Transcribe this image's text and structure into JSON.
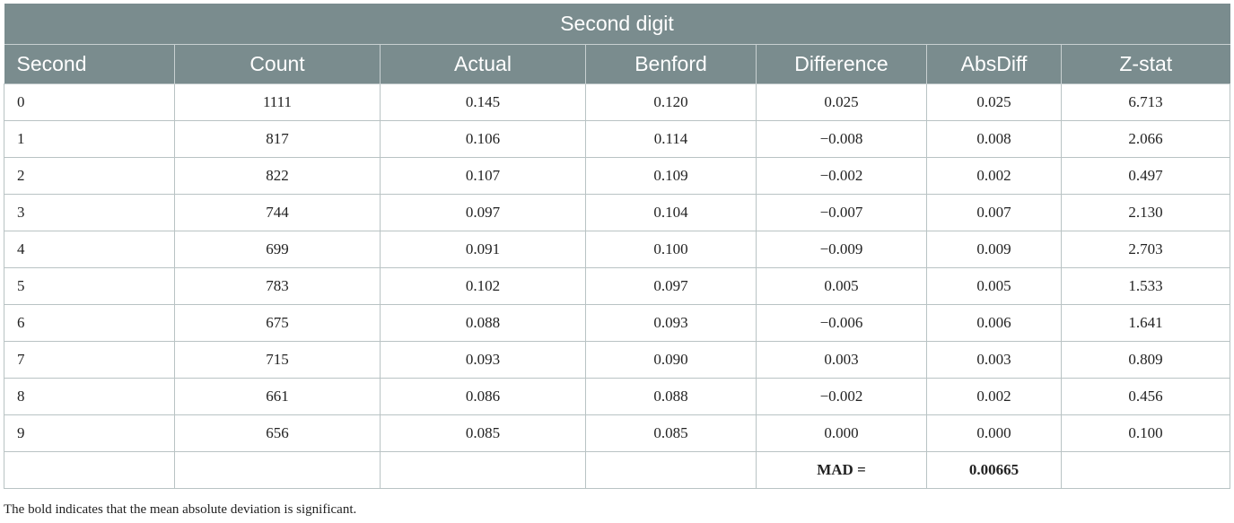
{
  "table": {
    "title": "Second digit",
    "columns": [
      "Second",
      "Count",
      "Actual",
      "Benford",
      "Difference",
      "AbsDiff",
      "Z-stat"
    ],
    "rows": [
      [
        "0",
        "1111",
        "0.145",
        "0.120",
        "0.025",
        "0.025",
        "6.713"
      ],
      [
        "1",
        "817",
        "0.106",
        "0.114",
        "−0.008",
        "0.008",
        "2.066"
      ],
      [
        "2",
        "822",
        "0.107",
        "0.109",
        "−0.002",
        "0.002",
        "0.497"
      ],
      [
        "3",
        "744",
        "0.097",
        "0.104",
        "−0.007",
        "0.007",
        "2.130"
      ],
      [
        "4",
        "699",
        "0.091",
        "0.100",
        "−0.009",
        "0.009",
        "2.703"
      ],
      [
        "5",
        "783",
        "0.102",
        "0.097",
        "0.005",
        "0.005",
        "1.533"
      ],
      [
        "6",
        "675",
        "0.088",
        "0.093",
        "−0.006",
        "0.006",
        "1.641"
      ],
      [
        "7",
        "715",
        "0.093",
        "0.090",
        "0.003",
        "0.003",
        "0.809"
      ],
      [
        "8",
        "661",
        "0.086",
        "0.088",
        "−0.002",
        "0.002",
        "0.456"
      ],
      [
        "9",
        "656",
        "0.085",
        "0.085",
        "0.000",
        "0.000",
        "0.100"
      ]
    ],
    "mad_label": "MAD =",
    "mad_value": "0.00665"
  },
  "footnote": "The bold indicates that the mean absolute deviation is significant.",
  "colors": {
    "header_bg": "#7a8c8e",
    "header_text": "#ffffff",
    "grid": "#b9c3c4"
  }
}
